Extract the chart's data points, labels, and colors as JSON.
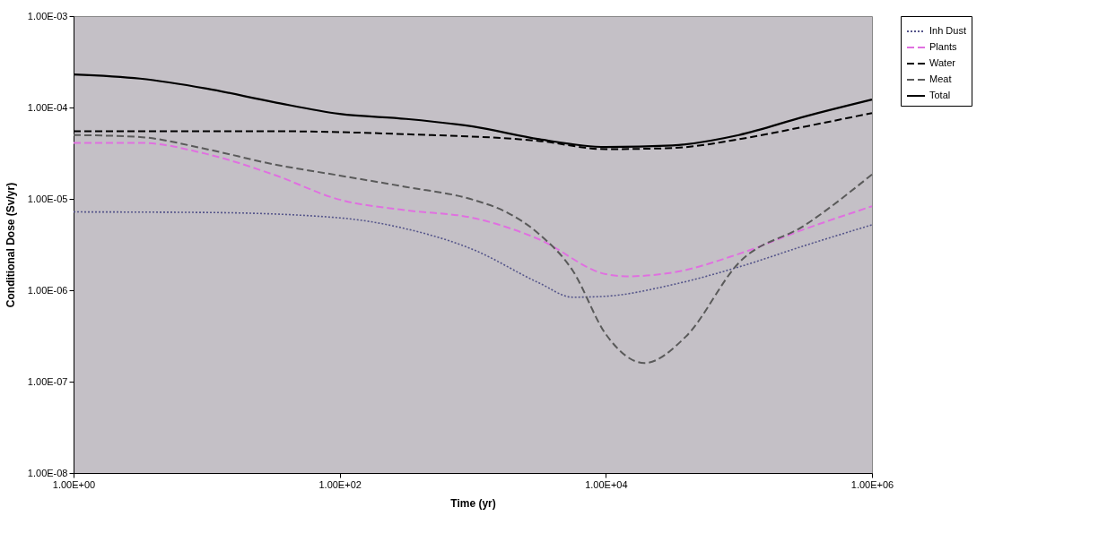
{
  "chart_data": {
    "type": "line",
    "xlabel": "Time (yr)",
    "ylabel": "Conditional Dose (Sv/yr)",
    "log": "xy",
    "grid": false,
    "legend": "right",
    "marker": "none",
    "xlim": [
      1,
      1000000
    ],
    "ylim": [
      1e-08,
      0.001
    ],
    "xticks": [
      {
        "value": 1,
        "label": "1.00E+00"
      },
      {
        "value": 100,
        "label": "1.00E+02"
      },
      {
        "value": 10000,
        "label": "1.00E+04"
      },
      {
        "value": 1000000,
        "label": "1.00E+06"
      }
    ],
    "yticks": [
      {
        "value": 1e-08,
        "label": "1.00E-08"
      },
      {
        "value": 1e-07,
        "label": "1.00E-07"
      },
      {
        "value": 1e-06,
        "label": "1.00E-06"
      },
      {
        "value": 1e-05,
        "label": "1.00E-05"
      },
      {
        "value": 0.0001,
        "label": "1.00E-04"
      },
      {
        "value": 0.001,
        "label": "1.00E-03"
      }
    ],
    "series": [
      {
        "name": "Inh Dust",
        "color": "#55558a",
        "line_style": "dotted",
        "x": [
          1,
          10,
          100,
          316,
          1000,
          3162,
          5623,
          10000,
          31623,
          100000,
          316228,
          1000000
        ],
        "values": [
          7.2e-06,
          7.1e-06,
          6.2e-06,
          4.7e-06,
          2.8e-06,
          1.2e-06,
          8.4e-07,
          8.6e-07,
          1.15e-06,
          1.8e-06,
          3.1e-06,
          5.2e-06
        ]
      },
      {
        "name": "Plants",
        "color": "#e070e0",
        "line_style": "dashed",
        "x": [
          1,
          3.16,
          10,
          31.6,
          100,
          316,
          1000,
          3162,
          10000,
          14125,
          31623,
          100000,
          316228,
          1000000
        ],
        "values": [
          4.1e-05,
          4.1e-05,
          3.1e-05,
          1.85e-05,
          9.8e-06,
          7.5e-06,
          6.2e-06,
          3.6e-06,
          1.5e-06,
          1.42e-06,
          1.56e-06,
          2.5e-06,
          4.7e-06,
          8.3e-06
        ]
      },
      {
        "name": "Water",
        "color": "#000000",
        "line_style": "dashed",
        "x": [
          1,
          31.6,
          316,
          3162,
          10000,
          31623,
          100000,
          316228,
          1000000
        ],
        "values": [
          5.5e-05,
          5.5e-05,
          5.1e-05,
          4.3e-05,
          3.5e-05,
          3.6e-05,
          4.5e-05,
          6.2e-05,
          8.7e-05
        ]
      },
      {
        "name": "Meat",
        "color": "#5a5a5a",
        "line_style": "dashed",
        "x": [
          1,
          3.16,
          10,
          31.6,
          100,
          316,
          1000,
          1778,
          3162,
          5623,
          10000,
          19498,
          39811,
          100000,
          316228,
          1000000
        ],
        "values": [
          5e-05,
          4.75e-05,
          3.5e-05,
          2.4e-05,
          1.8e-05,
          1.35e-05,
          9.8e-06,
          7.2e-06,
          4.1e-06,
          1.65e-06,
          3.3e-07,
          1.6e-07,
          3.1e-07,
          2e-06,
          5.2e-06,
          1.85e-05
        ]
      },
      {
        "name": "Total",
        "color": "#000000",
        "line_style": "solid",
        "x": [
          1,
          3.16,
          10,
          31.6,
          100,
          316,
          1000,
          3162,
          10000,
          31623,
          100000,
          316228,
          1000000
        ],
        "values": [
          0.00023,
          0.000207,
          0.000161,
          0.000115,
          8.5e-05,
          7.5e-05,
          6.2e-05,
          4.5e-05,
          3.7e-05,
          3.85e-05,
          5e-05,
          8e-05,
          0.000122
        ]
      }
    ]
  }
}
